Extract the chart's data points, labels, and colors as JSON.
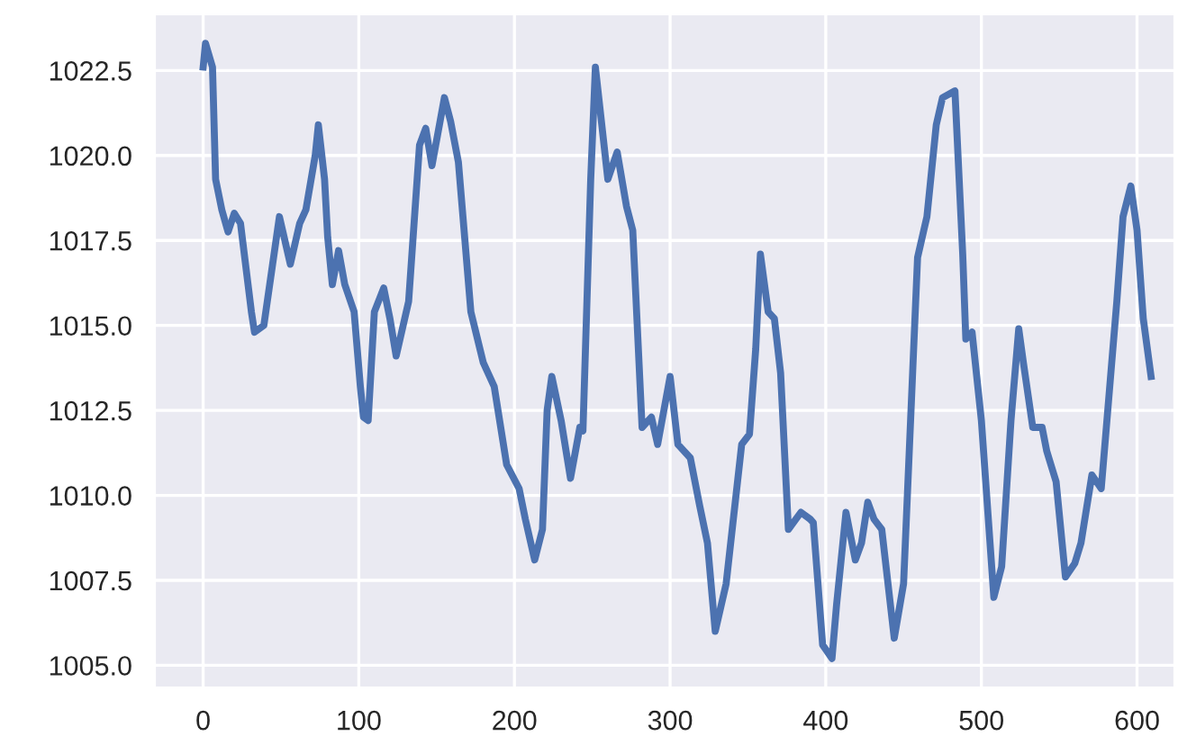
{
  "chart_data": {
    "type": "line",
    "x": [
      0,
      1.5,
      6,
      8,
      12,
      16,
      20,
      24,
      31,
      33,
      39,
      49,
      56,
      62,
      66,
      72,
      74,
      78,
      80,
      83,
      87,
      91,
      97,
      101,
      103,
      106,
      110,
      116,
      120,
      124,
      132,
      139,
      143,
      147,
      155,
      159,
      164,
      172,
      180,
      187,
      195,
      203,
      207,
      213,
      218,
      221,
      224,
      230,
      236,
      242,
      244,
      249,
      252,
      260,
      266,
      272,
      276,
      282,
      288,
      292,
      300,
      305,
      313,
      319,
      324,
      329,
      336,
      346,
      351,
      355,
      358,
      363,
      367,
      371,
      376,
      384,
      390,
      392,
      398,
      404,
      407,
      413,
      419,
      423,
      427,
      431,
      436,
      444,
      450,
      459,
      465,
      471,
      475,
      483,
      488,
      490,
      494,
      500,
      508,
      513,
      519,
      524,
      527,
      533,
      539,
      542,
      548,
      554,
      560,
      564,
      571,
      577,
      587,
      591,
      596,
      600,
      604,
      609
    ],
    "series": [
      {
        "color": "#4c72b0",
        "values": [
          1022.6,
          1023.3,
          1022.6,
          1019.3,
          1018.4,
          1017.75,
          1018.3,
          1018.0,
          1015.4,
          1014.8,
          1015.0,
          1018.2,
          1016.8,
          1018.0,
          1018.4,
          1020.0,
          1020.9,
          1019.3,
          1017.6,
          1016.2,
          1017.2,
          1016.2,
          1015.4,
          1013.2,
          1012.3,
          1012.2,
          1015.4,
          1016.1,
          1015.2,
          1014.1,
          1015.7,
          1020.3,
          1020.8,
          1019.7,
          1021.7,
          1021.0,
          1019.8,
          1015.4,
          1013.9,
          1013.2,
          1010.9,
          1010.2,
          1009.3,
          1008.1,
          1009.0,
          1012.5,
          1013.5,
          1012.2,
          1010.5,
          1012.0,
          1011.9,
          1019.3,
          1022.6,
          1019.3,
          1020.1,
          1018.5,
          1017.8,
          1012.0,
          1012.3,
          1011.5,
          1013.5,
          1011.5,
          1011.1,
          1009.7,
          1008.6,
          1006.0,
          1007.4,
          1011.5,
          1011.8,
          1014.3,
          1017.1,
          1015.4,
          1015.2,
          1013.6,
          1009.0,
          1009.5,
          1009.3,
          1009.2,
          1005.6,
          1005.2,
          1006.8,
          1009.5,
          1008.1,
          1008.6,
          1009.8,
          1009.3,
          1009.0,
          1005.8,
          1007.4,
          1017.0,
          1018.2,
          1020.9,
          1021.7,
          1021.9,
          1017.1,
          1014.6,
          1014.8,
          1012.2,
          1007.0,
          1007.9,
          1012.2,
          1014.9,
          1013.9,
          1012.0,
          1012.0,
          1011.3,
          1010.4,
          1007.6,
          1008.0,
          1008.6,
          1010.6,
          1010.2,
          1015.7,
          1018.2,
          1019.1,
          1017.8,
          1015.2,
          1013.5
        ]
      }
    ],
    "xlim": [
      -31,
      624
    ],
    "ylim": [
      1004.35,
      1024.15
    ],
    "xticks": [
      0,
      100,
      200,
      300,
      400,
      500,
      600
    ],
    "yticks": [
      {
        "value": 1005,
        "label": "1005.0"
      },
      {
        "value": 1007.5,
        "label": "1007.5"
      },
      {
        "value": 1010,
        "label": "1010.0"
      },
      {
        "value": 1012.5,
        "label": "1012.5"
      },
      {
        "value": 1015,
        "label": "1015.0"
      },
      {
        "value": 1017.5,
        "label": "1017.5"
      },
      {
        "value": 1020,
        "label": "1020.0"
      },
      {
        "value": 1022.5,
        "label": "1022.5"
      }
    ],
    "grid": true,
    "legend": false,
    "marker": "none",
    "line_style": "solid"
  }
}
